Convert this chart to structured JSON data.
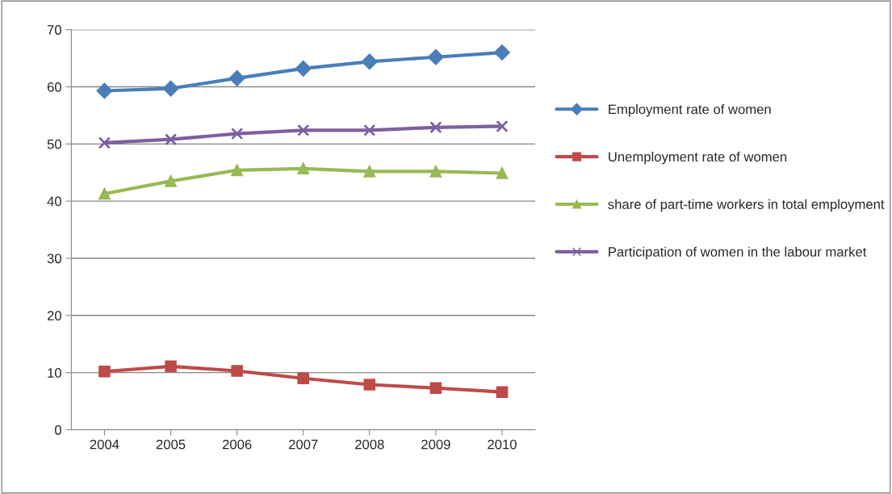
{
  "chart_data": {
    "type": "line",
    "categories": [
      "2004",
      "2005",
      "2006",
      "2007",
      "2008",
      "2009",
      "2010"
    ],
    "series": [
      {
        "name": "Employment rate of women",
        "color": "#4a7ebb",
        "marker": "diamond",
        "values": [
          59.3,
          59.7,
          61.5,
          63.2,
          64.4,
          65.2,
          66.0
        ]
      },
      {
        "name": "Unemployment rate of women",
        "color": "#be4b48",
        "marker": "square",
        "values": [
          10.2,
          11.1,
          10.3,
          9.0,
          7.9,
          7.3,
          6.6
        ]
      },
      {
        "name": "share of part-time workers in total employment",
        "color": "#98b954",
        "marker": "triangle",
        "values": [
          41.3,
          43.5,
          45.4,
          45.7,
          45.2,
          45.2,
          44.9
        ]
      },
      {
        "name": "Participation of women in the labour market",
        "color": "#7d60a0",
        "marker": "cross",
        "values": [
          50.2,
          50.8,
          51.8,
          52.4,
          52.4,
          52.9,
          53.1
        ]
      }
    ],
    "ylim": [
      0,
      70
    ],
    "yticks": [
      0,
      10,
      20,
      30,
      40,
      50,
      60,
      70
    ],
    "grid": "y",
    "legend": "right"
  }
}
